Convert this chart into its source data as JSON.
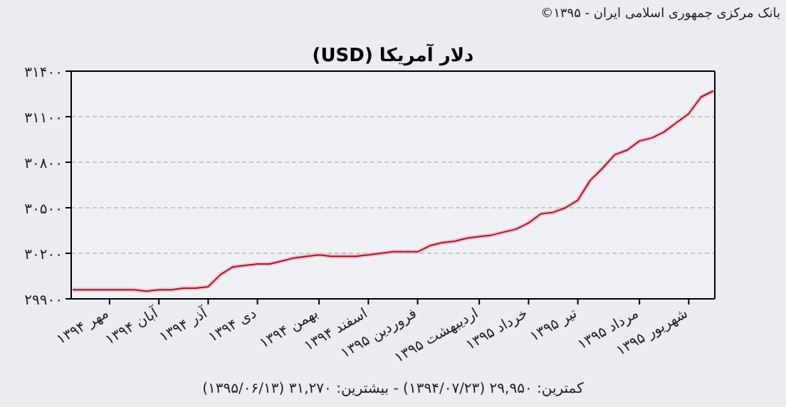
{
  "chart_data": {
    "type": "line",
    "title": "دلار آمریکا (USD)",
    "annotations": [
      "بانک مرکزی جمهوری اسلامی ایران - ۱۳۹۵©",
      "کمترین: ۲۹,۹۵۰ (۱۳۹۴/۰۷/۲۳) - بیشترین: ۳۱,۲۷۰ (۱۳۹۵/۰۶/۱۳)"
    ],
    "categories": [
      null,
      null,
      null,
      "مهر ۱۳۹۴",
      null,
      null,
      null,
      "آبان ۱۳۹۴",
      null,
      null,
      null,
      "آذر ۱۳۹۴",
      null,
      null,
      null,
      "دی ۱۳۹۴",
      null,
      null,
      null,
      null,
      "بهمن ۱۳۹۴",
      null,
      null,
      null,
      "اسفند ۱۳۹۴",
      null,
      null,
      null,
      "فروردین ۱۳۹۵",
      null,
      null,
      null,
      null,
      "اردیبهشت ۱۳۹۵",
      null,
      null,
      null,
      "خرداد ۱۳۹۵",
      null,
      null,
      null,
      "تیر ۱۳۹۵",
      null,
      null,
      null,
      null,
      "مرداد ۱۳۹۵",
      null,
      null,
      null,
      "شهریور ۱۳۹۵",
      null,
      null
    ],
    "series": [
      {
        "color": "#9b1b30",
        "values": [
          29960,
          29960,
          29960,
          29960,
          29960,
          29960,
          29950,
          29960,
          29960,
          29970,
          29970,
          29980,
          30060,
          30110,
          30120,
          30130,
          30130,
          30150,
          30170,
          30180,
          30190,
          30180,
          30180,
          30180,
          30190,
          30200,
          30210,
          30210,
          30210,
          30250,
          30270,
          30280,
          30300,
          30310,
          30320,
          30340,
          30360,
          30400,
          30460,
          30470,
          30500,
          30550,
          30680,
          30760,
          30850,
          30880,
          30940,
          30960,
          31000,
          31060,
          31120,
          31230,
          31270
        ]
      }
    ],
    "ylim": [
      29900,
      31400
    ],
    "yticks": [
      {
        "value": 29900,
        "label": "۲۹۹۰۰"
      },
      {
        "value": 30200,
        "label": "۳۰۲۰۰"
      },
      {
        "value": 30500,
        "label": "۳۰۵۰۰"
      },
      {
        "value": 30800,
        "label": "۳۰۸۰۰"
      },
      {
        "value": 31100,
        "label": "۳۱۱۰۰"
      },
      {
        "value": 31400,
        "label": "۳۱۴۰۰"
      }
    ],
    "grid": "y",
    "line_style": "solid",
    "marker": "none"
  }
}
